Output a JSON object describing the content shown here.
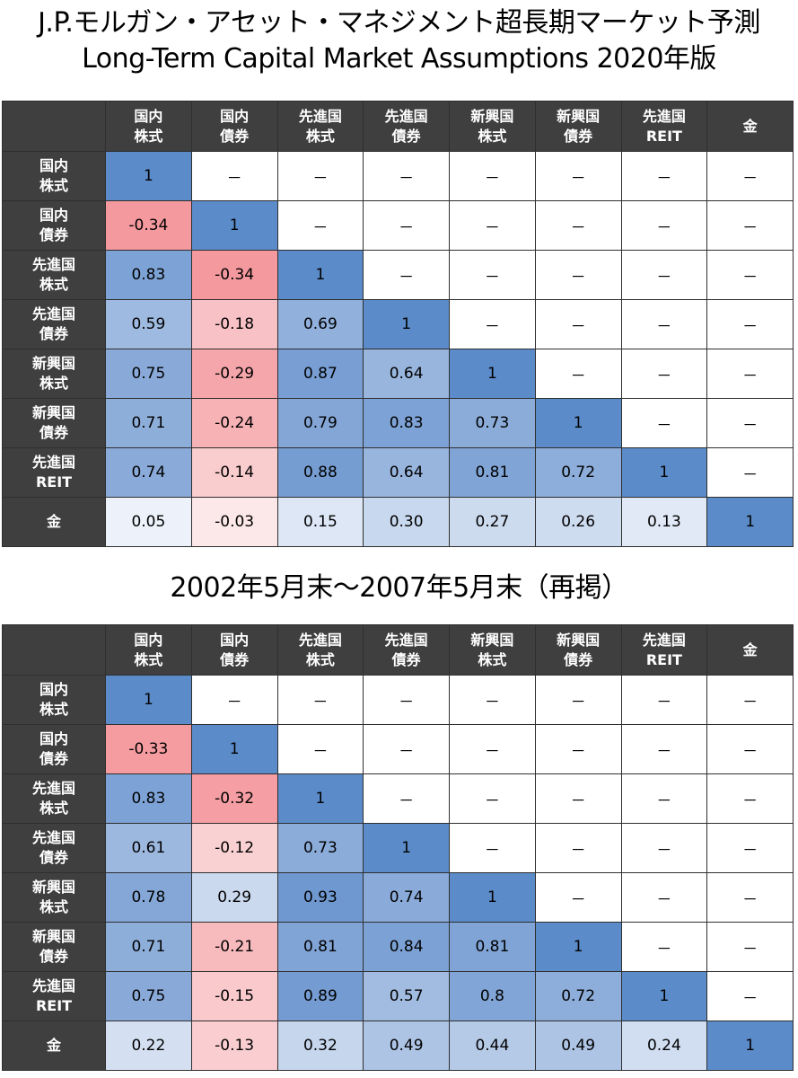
{
  "colors": {
    "header_bg": "#3f3f3f",
    "diag": "#5b8bc9",
    "high_positive": "#6f98d0",
    "low_positive": "#f3f6fc",
    "strong_negative": "#f4999e",
    "weak_negative": "#fdeff0",
    "empty": "#ffffff"
  },
  "matrix_labels": [
    [
      "国内",
      "株式"
    ],
    [
      "国内",
      "債券"
    ],
    [
      "先進国",
      "株式"
    ],
    [
      "先進国",
      "債券"
    ],
    [
      "新興国",
      "株式"
    ],
    [
      "新興国",
      "債券"
    ],
    [
      "先進国",
      "REIT"
    ],
    [
      "金"
    ]
  ],
  "empty_mark": "－",
  "chart_data": [
    {
      "type": "table",
      "title": [
        "J.P.モルガン・アセット・マネジメント超長期マーケット予測",
        "Long-Term Capital Market Assumptions 2020年版"
      ],
      "values": [
        [
          "1",
          "－",
          "－",
          "－",
          "－",
          "－",
          "－",
          "－"
        ],
        [
          "-0.34",
          "1",
          "－",
          "－",
          "－",
          "－",
          "－",
          "－"
        ],
        [
          "0.83",
          "-0.34",
          "1",
          "－",
          "－",
          "－",
          "－",
          "－"
        ],
        [
          "0.59",
          "-0.18",
          "0.69",
          "1",
          "－",
          "－",
          "－",
          "－"
        ],
        [
          "0.75",
          "-0.29",
          "0.87",
          "0.64",
          "1",
          "－",
          "－",
          "－"
        ],
        [
          "0.71",
          "-0.24",
          "0.79",
          "0.83",
          "0.73",
          "1",
          "－",
          "－"
        ],
        [
          "0.74",
          "-0.14",
          "0.88",
          "0.64",
          "0.81",
          "0.72",
          "1",
          "－"
        ],
        [
          "0.05",
          "-0.03",
          "0.15",
          "0.30",
          "0.27",
          "0.26",
          "0.13",
          "1"
        ]
      ]
    },
    {
      "type": "table",
      "title": [
        "2002年5月末～2007年5月末（再掲）"
      ],
      "values": [
        [
          "1",
          "－",
          "－",
          "－",
          "－",
          "－",
          "－",
          "－"
        ],
        [
          "-0.33",
          "1",
          "－",
          "－",
          "－",
          "－",
          "－",
          "－"
        ],
        [
          "0.83",
          "-0.32",
          "1",
          "－",
          "－",
          "－",
          "－",
          "－"
        ],
        [
          "0.61",
          "-0.12",
          "0.73",
          "1",
          "－",
          "－",
          "－",
          "－"
        ],
        [
          "0.78",
          "0.29",
          "0.93",
          "0.74",
          "1",
          "－",
          "－",
          "－"
        ],
        [
          "0.71",
          "-0.21",
          "0.81",
          "0.84",
          "0.81",
          "1",
          "－",
          "－"
        ],
        [
          "0.75",
          "-0.15",
          "0.89",
          "0.57",
          "0.8",
          "0.72",
          "1",
          "－"
        ],
        [
          "0.22",
          "-0.13",
          "0.32",
          "0.49",
          "0.44",
          "0.49",
          "0.24",
          "1"
        ]
      ]
    }
  ]
}
